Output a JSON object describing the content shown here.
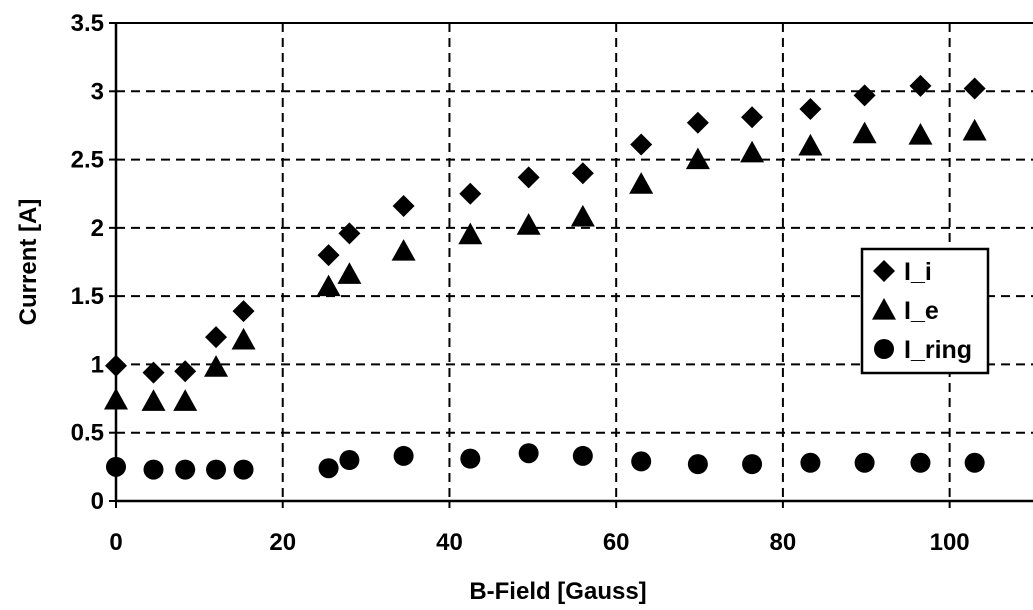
{
  "chart_data": {
    "type": "scatter",
    "title": "",
    "xlabel": "B-Field [Gauss]",
    "ylabel": "Current [A]",
    "xlim": [
      0,
      110
    ],
    "ylim": [
      0,
      3.5
    ],
    "xticks": [
      "0",
      "20",
      "40",
      "60",
      "80",
      "100"
    ],
    "yticks": [
      "0",
      "0.5",
      "1",
      "1.5",
      "2",
      "2.5",
      "3",
      "3.5"
    ],
    "grid": true,
    "legend_position": "right",
    "series": [
      {
        "name": "I_i",
        "marker": "diamond",
        "color": "#000000",
        "x": [
          0,
          4.5,
          8.3,
          12,
          15.3,
          25.5,
          28,
          34.5,
          42.5,
          49.5,
          56,
          63,
          69.8,
          76.3,
          83.3,
          89.8,
          96.5,
          103
        ],
        "y": [
          0.99,
          0.94,
          0.95,
          1.2,
          1.39,
          1.8,
          1.96,
          2.16,
          2.25,
          2.37,
          2.4,
          2.61,
          2.77,
          2.81,
          2.87,
          2.97,
          3.04,
          3.02
        ]
      },
      {
        "name": "I_e",
        "marker": "triangle",
        "color": "#000000",
        "x": [
          0,
          4.5,
          8.3,
          12,
          15.3,
          25.5,
          28,
          34.5,
          42.5,
          49.5,
          56,
          63,
          69.8,
          76.3,
          83.3,
          89.8,
          96.5,
          103
        ],
        "y": [
          0.74,
          0.73,
          0.73,
          0.98,
          1.18,
          1.57,
          1.66,
          1.83,
          1.95,
          2.02,
          2.08,
          2.32,
          2.5,
          2.55,
          2.6,
          2.69,
          2.68,
          2.71
        ]
      },
      {
        "name": "I_ring",
        "marker": "circle",
        "color": "#000000",
        "x": [
          0,
          4.5,
          8.3,
          12,
          15.3,
          25.5,
          28,
          34.5,
          42.5,
          49.5,
          56,
          63,
          69.8,
          76.3,
          83.3,
          89.8,
          96.5,
          103
        ],
        "y": [
          0.25,
          0.23,
          0.23,
          0.23,
          0.23,
          0.24,
          0.3,
          0.33,
          0.31,
          0.35,
          0.33,
          0.29,
          0.27,
          0.27,
          0.28,
          0.28,
          0.28,
          0.28
        ]
      }
    ]
  }
}
